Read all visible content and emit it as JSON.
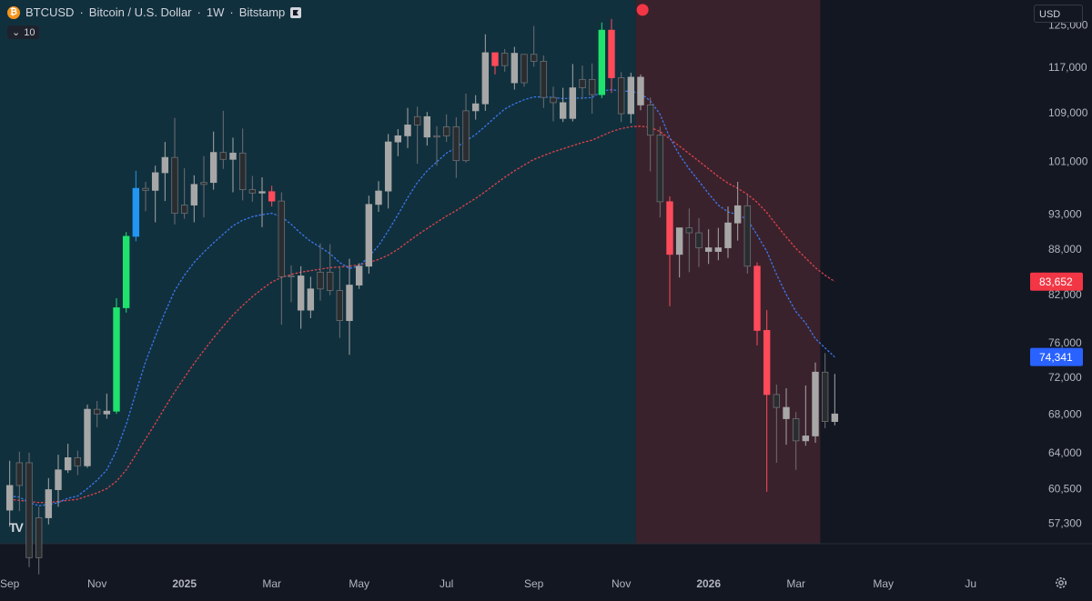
{
  "legend": {
    "symbol": "BTCUSD",
    "name": "Bitcoin / U.S. Dollar",
    "interval": "1W",
    "exchange": "Bitstamp",
    "sep": "·",
    "indicator_count": "10"
  },
  "currency": "USD",
  "colors": {
    "background": "#131722",
    "bull_zone": "#11303d",
    "bear_zone": "#3a222c",
    "candle_up": "#a7a7a7",
    "candle_down": "#2a2d30",
    "candle_bright_up": "#1fe36d",
    "candle_bright_down": "#ff4a5a",
    "candle_blue": "#2196f3",
    "ma_fast": "#3a78f0",
    "ma_slow": "#e0434c",
    "label_red": "#f23645",
    "label_blue": "#2962ff"
  },
  "icons": {
    "coin": "bitcoin-icon",
    "flag": "flag-icon",
    "settings": "gear-icon",
    "logo": "tradingview-logo-icon"
  },
  "logo_text": "TV",
  "chart_data": {
    "type": "candlestick",
    "x_ticks": [
      {
        "label": "Sep",
        "week": 0
      },
      {
        "label": "Nov",
        "week": 9
      },
      {
        "label": "2025",
        "week": 18
      },
      {
        "label": "Mar",
        "week": 27
      },
      {
        "label": "May",
        "week": 36
      },
      {
        "label": "Jul",
        "week": 45
      },
      {
        "label": "Sep",
        "week": 54
      },
      {
        "label": "Nov",
        "week": 63
      },
      {
        "label": "2026",
        "week": 72
      },
      {
        "label": "Mar",
        "week": 81
      },
      {
        "label": "May",
        "week": 90
      },
      {
        "label": "Ju",
        "week": 99
      }
    ],
    "y_ticks": [
      57300,
      60500,
      64000,
      68000,
      72000,
      76000,
      82000,
      88000,
      93000,
      101000,
      109000,
      117000,
      125000
    ],
    "y_scale": "log",
    "ylim": [
      55500,
      130000
    ],
    "xlim": [
      -1,
      104
    ],
    "bull_zone_weeks": [
      -1,
      64.5
    ],
    "bear_zone_weeks": [
      64.5,
      83.5
    ],
    "signal_marker": {
      "week": 65.2,
      "price": 128000
    },
    "price_labels": [
      {
        "text": "83,652",
        "price": 83652,
        "color": "#f23645"
      },
      {
        "text": "74,341",
        "price": 74341,
        "color": "#2962ff"
      }
    ],
    "candles": [
      [
        58500,
        63200,
        57000,
        60800,
        "up"
      ],
      [
        60800,
        64100,
        58400,
        63000,
        "down"
      ],
      [
        63000,
        64000,
        53500,
        54300,
        "down"
      ],
      [
        54300,
        58800,
        52900,
        57800,
        "down"
      ],
      [
        57800,
        61500,
        57200,
        60400,
        "up"
      ],
      [
        60400,
        63800,
        58800,
        62300,
        "up"
      ],
      [
        62300,
        64900,
        62000,
        63500,
        "up"
      ],
      [
        63500,
        64200,
        61800,
        62700,
        "down"
      ],
      [
        62700,
        69000,
        62500,
        68500,
        "up"
      ],
      [
        68500,
        69400,
        66600,
        68000,
        "down"
      ],
      [
        68000,
        70200,
        67500,
        68300,
        "up"
      ],
      [
        68300,
        81500,
        68000,
        80300,
        "bright_up"
      ],
      [
        80300,
        90400,
        79700,
        89800,
        "bright_up"
      ],
      [
        89800,
        99500,
        89100,
        96800,
        "blue"
      ],
      [
        96800,
        97800,
        93400,
        96500,
        "down"
      ],
      [
        96500,
        100300,
        91800,
        99200,
        "up"
      ],
      [
        99200,
        104100,
        94900,
        101600,
        "up"
      ],
      [
        101600,
        108100,
        91500,
        93100,
        "down"
      ],
      [
        93100,
        99900,
        92300,
        94300,
        "down"
      ],
      [
        94300,
        98800,
        91800,
        97400,
        "up"
      ],
      [
        97400,
        101800,
        92500,
        97700,
        "down"
      ],
      [
        97700,
        105800,
        96600,
        102400,
        "up"
      ],
      [
        102400,
        109300,
        99800,
        101300,
        "down"
      ],
      [
        101300,
        104800,
        96200,
        102300,
        "up"
      ],
      [
        102300,
        106300,
        95000,
        96600,
        "down"
      ],
      [
        96600,
        98700,
        94800,
        96100,
        "down"
      ],
      [
        96100,
        98500,
        91100,
        96300,
        "up"
      ],
      [
        96300,
        97200,
        94100,
        94900,
        "bright_down"
      ],
      [
        94900,
        96200,
        78200,
        84300,
        "down"
      ],
      [
        84300,
        85800,
        81000,
        84400,
        "down"
      ],
      [
        84400,
        85700,
        77700,
        80000,
        "up"
      ],
      [
        80000,
        84300,
        79000,
        82700,
        "up"
      ],
      [
        82700,
        88800,
        81200,
        84900,
        "down"
      ],
      [
        84900,
        88700,
        81900,
        82500,
        "down"
      ],
      [
        82500,
        85700,
        76600,
        78700,
        "down"
      ],
      [
        78700,
        86700,
        74600,
        83200,
        "up"
      ],
      [
        83200,
        86100,
        82700,
        85700,
        "up"
      ],
      [
        85700,
        95700,
        84700,
        94400,
        "up"
      ],
      [
        94400,
        97900,
        93300,
        96400,
        "up"
      ],
      [
        96400,
        105400,
        93800,
        104100,
        "up"
      ],
      [
        104100,
        106200,
        101800,
        105100,
        "up"
      ],
      [
        105100,
        109800,
        103100,
        106900,
        "up"
      ],
      [
        106900,
        110000,
        100600,
        108300,
        "down"
      ],
      [
        108300,
        109100,
        103500,
        104900,
        "up"
      ],
      [
        104900,
        106700,
        100300,
        105100,
        "down"
      ],
      [
        105100,
        108700,
        104100,
        106600,
        "down"
      ],
      [
        106600,
        108200,
        98400,
        101100,
        "down"
      ],
      [
        101100,
        112300,
        100800,
        109300,
        "down"
      ],
      [
        109300,
        112000,
        107800,
        110500,
        "up"
      ],
      [
        110500,
        123200,
        109300,
        119700,
        "up"
      ],
      [
        119700,
        119400,
        115700,
        117300,
        "bright_down"
      ],
      [
        117300,
        120400,
        116200,
        119600,
        "down"
      ],
      [
        119600,
        120800,
        113000,
        114200,
        "up"
      ],
      [
        114200,
        119300,
        113500,
        119400,
        "down"
      ],
      [
        119400,
        124800,
        117100,
        118100,
        "down"
      ],
      [
        118100,
        119200,
        109800,
        111600,
        "down"
      ],
      [
        111600,
        113500,
        107500,
        110700,
        "down"
      ],
      [
        110700,
        113300,
        107400,
        108000,
        "up"
      ],
      [
        108000,
        117600,
        107500,
        113300,
        "up"
      ],
      [
        113300,
        117300,
        111300,
        114800,
        "down"
      ],
      [
        114800,
        117700,
        108800,
        112100,
        "down"
      ],
      [
        112100,
        125500,
        111500,
        124000,
        "bright_up"
      ],
      [
        124000,
        126200,
        112400,
        115100,
        "bright_down"
      ],
      [
        115100,
        116100,
        107400,
        108800,
        "down"
      ],
      [
        108800,
        116000,
        107200,
        115200,
        "up"
      ],
      [
        115200,
        115700,
        109400,
        110300,
        "up"
      ],
      [
        110300,
        111600,
        99400,
        105200,
        "down"
      ],
      [
        105200,
        106600,
        92500,
        94800,
        "down"
      ],
      [
        94800,
        95600,
        80500,
        87300,
        "bright_down"
      ],
      [
        87300,
        91000,
        84200,
        91000,
        "up"
      ],
      [
        91000,
        93800,
        84900,
        90300,
        "down"
      ],
      [
        90300,
        92400,
        85600,
        88200,
        "down"
      ],
      [
        88200,
        90800,
        86000,
        87700,
        "up"
      ],
      [
        87700,
        91000,
        86500,
        88200,
        "up"
      ],
      [
        88200,
        94100,
        86800,
        91700,
        "up"
      ],
      [
        91700,
        97800,
        89200,
        94200,
        "up"
      ],
      [
        94200,
        95900,
        84700,
        85700,
        "down"
      ],
      [
        85700,
        86200,
        75700,
        77500,
        "bright_down"
      ],
      [
        77500,
        80000,
        60200,
        70100,
        "bright_down"
      ],
      [
        70100,
        71200,
        63000,
        68700,
        "down"
      ],
      [
        68700,
        70800,
        64800,
        67500,
        "up"
      ],
      [
        67500,
        68200,
        62300,
        65200,
        "down"
      ],
      [
        65200,
        71100,
        64700,
        65700,
        "up"
      ],
      [
        65700,
        73700,
        65000,
        72600,
        "up"
      ],
      [
        72600,
        74800,
        66500,
        67200,
        "down"
      ],
      [
        67200,
        72400,
        66800,
        68000,
        "up"
      ]
    ],
    "ma_fast": [
      59800,
      59700,
      59200,
      58900,
      59000,
      59200,
      59600,
      59800,
      60500,
      61300,
      62300,
      64200,
      66900,
      70300,
      73800,
      76800,
      79700,
      82500,
      84500,
      86200,
      87600,
      88900,
      90100,
      91300,
      92100,
      92600,
      92900,
      93100,
      92600,
      91500,
      90200,
      89100,
      88300,
      87400,
      86200,
      85400,
      85700,
      87000,
      88500,
      90600,
      92900,
      95400,
      97700,
      99500,
      100900,
      102300,
      103200,
      104300,
      105300,
      106700,
      108200,
      109600,
      110500,
      111200,
      111700,
      111700,
      111600,
      111400,
      111500,
      111500,
      111600,
      112700,
      113000,
      112700,
      112700,
      112300,
      111000,
      108700,
      104800,
      102000,
      99800,
      97900,
      96000,
      94300,
      93300,
      92900,
      92200,
      90000,
      87700,
      84600,
      82000,
      79800,
      78400,
      76500,
      75400,
      74341
    ],
    "ma_slow": [
      59500,
      59400,
      59300,
      59200,
      59200,
      59300,
      59400,
      59500,
      59800,
      60100,
      60500,
      61200,
      62300,
      63800,
      65400,
      67000,
      68700,
      70400,
      72000,
      73600,
      75100,
      76600,
      78000,
      79400,
      80600,
      81700,
      82700,
      83600,
      84200,
      84600,
      84900,
      85100,
      85300,
      85500,
      85600,
      85700,
      85900,
      86200,
      86600,
      87200,
      88000,
      89000,
      90000,
      90900,
      91800,
      92700,
      93500,
      94400,
      95300,
      96300,
      97400,
      98500,
      99500,
      100400,
      101300,
      101900,
      102500,
      103000,
      103500,
      104000,
      104400,
      105100,
      105800,
      106300,
      106600,
      106700,
      106500,
      105800,
      104600,
      103400,
      102200,
      101000,
      99800,
      98600,
      97600,
      96800,
      95900,
      94700,
      93200,
      91400,
      89700,
      88100,
      86800,
      85500,
      84500,
      83652
    ]
  }
}
